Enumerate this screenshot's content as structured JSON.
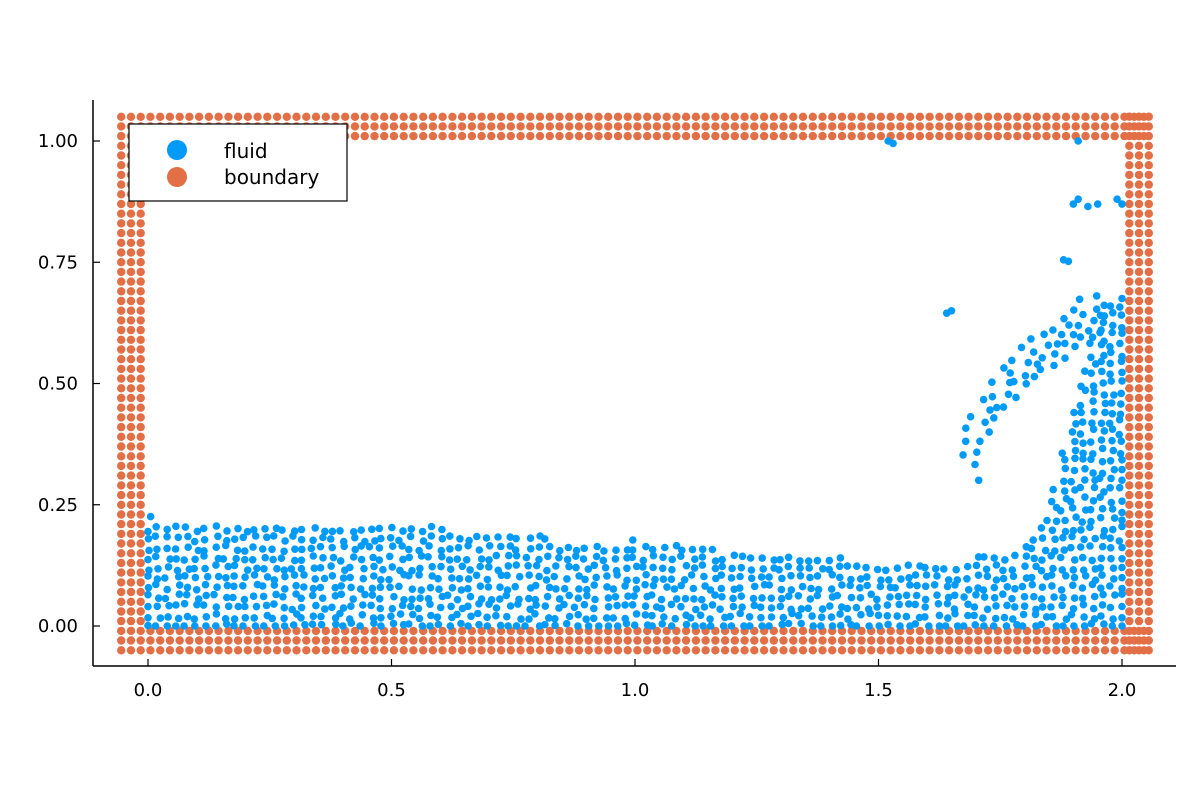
{
  "chart_data": {
    "type": "scatter",
    "title": "",
    "xlabel": "",
    "ylabel": "",
    "xlim": [
      -0.11,
      2.11
    ],
    "ylim": [
      -0.08,
      1.08
    ],
    "xticks": [
      0.0,
      0.5,
      1.0,
      1.5,
      2.0
    ],
    "xtick_labels": [
      "0.0",
      "0.5",
      "1.0",
      "1.5",
      "2.0"
    ],
    "yticks": [
      0.0,
      0.25,
      0.5,
      0.75,
      1.0
    ],
    "ytick_labels": [
      "0.00",
      "0.25",
      "0.50",
      "0.75",
      "1.00"
    ],
    "grid": false,
    "legend": {
      "position": "top-left"
    },
    "series": [
      {
        "name": "fluid",
        "color": "#009af9",
        "description_points": "particle cloud",
        "block": {
          "x_range": [
            0.0,
            2.0
          ],
          "y_min": 0.0,
          "spacing": 0.02,
          "surface_profile": [
            [
              0.0,
              0.22
            ],
            [
              0.2,
              0.215
            ],
            [
              0.5,
              0.205
            ],
            [
              0.8,
              0.19
            ],
            [
              0.9,
              0.16
            ],
            [
              1.0,
              0.18
            ],
            [
              1.2,
              0.155
            ],
            [
              1.5,
              0.135
            ],
            [
              1.7,
              0.14
            ],
            [
              1.8,
              0.16
            ],
            [
              1.85,
              0.25
            ],
            [
              1.9,
              0.45
            ],
            [
              1.95,
              0.65
            ],
            [
              2.0,
              0.68
            ]
          ]
        },
        "wave_crest": [
          [
            1.68,
            0.43
          ],
          [
            1.7,
            0.38
          ],
          [
            1.72,
            0.47
          ],
          [
            1.74,
            0.5
          ],
          [
            1.76,
            0.53
          ],
          [
            1.78,
            0.55
          ],
          [
            1.8,
            0.57
          ],
          [
            1.82,
            0.59
          ],
          [
            1.84,
            0.6
          ],
          [
            1.86,
            0.61
          ],
          [
            1.88,
            0.63
          ],
          [
            1.9,
            0.65
          ],
          [
            1.92,
            0.67
          ],
          [
            1.94,
            0.68
          ],
          [
            1.96,
            0.66
          ]
        ],
        "spray": [
          [
            1.52,
            1.0
          ],
          [
            1.53,
            0.995
          ],
          [
            1.91,
            1.0
          ],
          [
            1.64,
            0.645
          ],
          [
            1.65,
            0.65
          ],
          [
            1.88,
            0.755
          ],
          [
            1.89,
            0.752
          ],
          [
            1.9,
            0.87
          ],
          [
            1.91,
            0.88
          ],
          [
            1.93,
            0.865
          ],
          [
            1.95,
            0.87
          ],
          [
            1.99,
            0.88
          ],
          [
            2.0,
            0.87
          ]
        ]
      },
      {
        "name": "boundary",
        "color": "#e26f46",
        "walls": {
          "x_outer": [
            -0.055,
            2.055
          ],
          "y_outer": [
            -0.05,
            1.05
          ],
          "spacing": 0.02,
          "layers": 3
        }
      }
    ]
  },
  "legend_labels": [
    "fluid",
    "boundary"
  ]
}
